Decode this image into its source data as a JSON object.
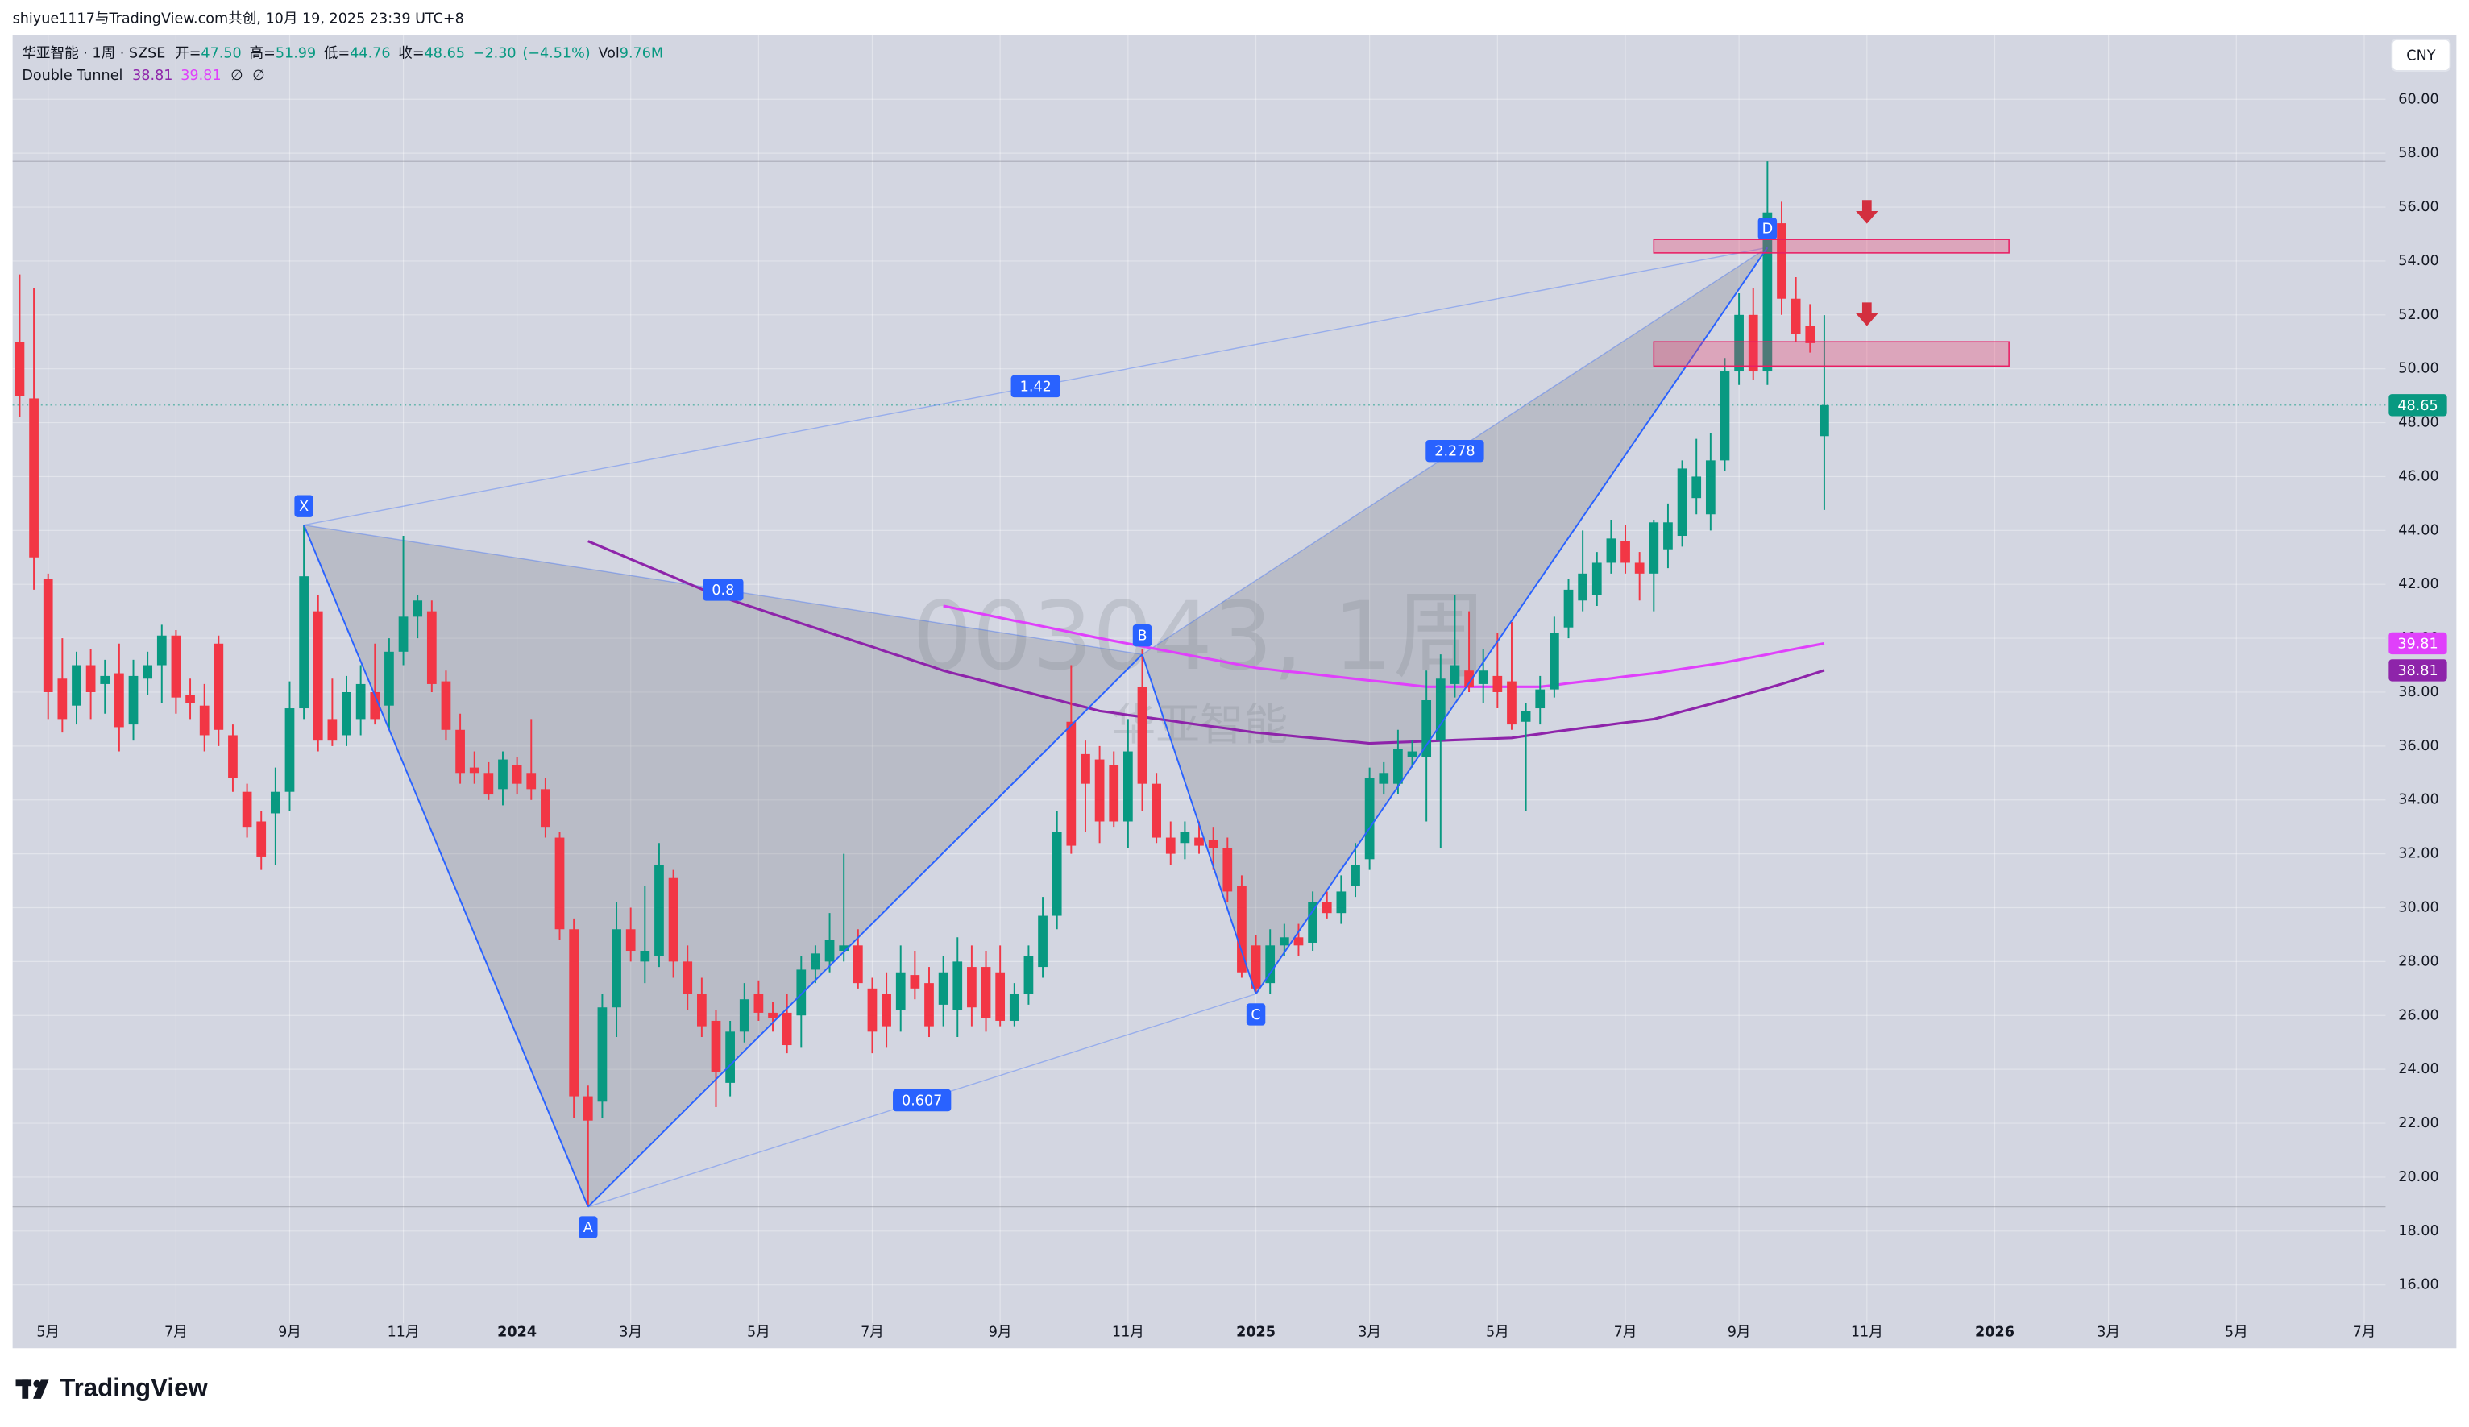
{
  "header": {
    "credit": "shiyue1117与TradingView.com共创, 10月 19, 2025 23:39 UTC+8",
    "currency": "CNY",
    "brand": "TradingView"
  },
  "chart_data": {
    "type": "candlestick",
    "symbol": "华亚智能 · 1周 · SZSE",
    "readout": [
      {
        "name": "开=",
        "value": 47.5,
        "label": "47.50"
      },
      {
        "name": "高=",
        "value": 51.99,
        "label": "51.99"
      },
      {
        "name": "低=",
        "value": 44.76,
        "label": "44.76"
      },
      {
        "name": "收=",
        "value": 48.65,
        "label": "48.65"
      }
    ],
    "change": {
      "value": -2.3,
      "label": "−2.30"
    },
    "change_pct": {
      "value": -4.51,
      "label": "(−4.51%)"
    },
    "volume_title": "Vol",
    "volume": {
      "value": 9760000,
      "label": "9.76M"
    },
    "watermark": "003043, 1周",
    "watermark_name": "华亚智能",
    "up_color": "#089981",
    "down_color": "#f23645",
    "categories": [
      null,
      null,
      "5月",
      null,
      null,
      null,
      null,
      null,
      null,
      null,
      null,
      "7月",
      null,
      null,
      null,
      null,
      null,
      null,
      null,
      "9月",
      null,
      null,
      null,
      null,
      null,
      null,
      null,
      "11月",
      null,
      null,
      null,
      null,
      null,
      null,
      null,
      "2024",
      null,
      null,
      null,
      null,
      null,
      null,
      null,
      "3月",
      null,
      null,
      null,
      null,
      null,
      null,
      null,
      null,
      "5月",
      null,
      null,
      null,
      null,
      null,
      null,
      null,
      "7月",
      null,
      null,
      null,
      null,
      null,
      null,
      null,
      null,
      "9月",
      null,
      null,
      null,
      null,
      null,
      null,
      null,
      null,
      "11月",
      null,
      null,
      null,
      null,
      null,
      null,
      null,
      null,
      "2025",
      null,
      null,
      null,
      null,
      null,
      null,
      null,
      "3月",
      null,
      null,
      null,
      null,
      null,
      null,
      null,
      null,
      "5月",
      null,
      null,
      null,
      null,
      null,
      null,
      null,
      null,
      "7月",
      null,
      null,
      null,
      null,
      null,
      null,
      null,
      "9月",
      null,
      null,
      null,
      null,
      null,
      null,
      null,
      null,
      "11月",
      null,
      null,
      null,
      null,
      null,
      null,
      null,
      null,
      "2026",
      null,
      null,
      null,
      null,
      null,
      null,
      null,
      "3月",
      null,
      null,
      null,
      null,
      null,
      null,
      null,
      null,
      "5月",
      null,
      null,
      null,
      null,
      null,
      null,
      null,
      null,
      "7月",
      null
    ],
    "open": [
      51.0,
      48.9,
      42.2,
      38.5,
      37.5,
      39.0,
      38.3,
      38.7,
      36.8,
      38.5,
      39.0,
      40.1,
      37.9,
      37.5,
      39.8,
      36.4,
      34.3,
      33.2,
      33.5,
      34.3,
      37.4,
      41.0,
      37.0,
      36.4,
      37.0,
      38.0,
      37.5,
      39.5,
      40.8,
      41.0,
      38.4,
      36.6,
      35.2,
      35.0,
      34.4,
      35.3,
      35.0,
      34.4,
      32.6,
      29.2,
      23.0,
      22.8,
      26.3,
      29.2,
      28.0,
      28.2,
      31.1,
      28.0,
      26.8,
      25.8,
      23.5,
      25.4,
      26.8,
      26.1,
      26.1,
      26.0,
      27.7,
      28.0,
      28.4,
      28.6,
      27.0,
      26.8,
      26.2,
      27.5,
      27.2,
      26.4,
      26.2,
      27.8,
      27.8,
      27.6,
      25.8,
      26.8,
      27.8,
      29.7,
      36.9,
      35.7,
      35.5,
      35.3,
      33.2,
      38.2,
      34.6,
      32.6,
      32.4,
      32.6,
      32.5,
      32.2,
      30.8,
      28.6,
      27.2,
      28.6,
      28.9,
      28.7,
      30.2,
      29.8,
      30.8,
      31.8,
      34.6,
      34.6,
      35.6,
      35.6,
      36.2,
      38.3,
      38.8,
      38.3,
      38.6,
      38.4,
      36.9,
      37.4,
      38.1,
      40.4,
      41.4,
      41.6,
      42.8,
      43.6,
      42.8,
      42.4,
      43.3,
      43.8,
      45.2,
      44.6,
      46.6,
      49.9,
      52.0,
      49.9,
      55.4,
      52.6,
      51.6,
      47.5,
      null,
      null,
      null,
      null,
      null,
      null,
      null,
      null,
      null,
      null,
      null,
      null,
      null,
      null,
      null,
      null,
      null,
      null,
      null,
      null,
      null,
      null,
      null,
      null,
      null,
      null,
      null,
      null,
      null,
      null,
      null,
      null,
      null,
      null,
      null,
      null,
      null,
      null,
      null
    ],
    "high": [
      53.5,
      53.0,
      42.4,
      40.0,
      39.5,
      39.6,
      39.2,
      39.8,
      39.2,
      39.5,
      40.5,
      40.3,
      38.5,
      38.3,
      40.1,
      36.8,
      34.6,
      33.6,
      35.2,
      38.4,
      44.2,
      41.6,
      38.5,
      38.6,
      39.0,
      39.8,
      40.0,
      43.8,
      41.6,
      41.4,
      38.8,
      37.2,
      35.8,
      35.4,
      35.8,
      35.6,
      37.0,
      34.8,
      32.8,
      29.6,
      23.4,
      26.8,
      30.2,
      30.0,
      30.8,
      32.4,
      31.4,
      28.6,
      27.4,
      26.2,
      25.8,
      27.2,
      27.3,
      26.5,
      26.8,
      28.2,
      28.6,
      29.8,
      32.0,
      29.2,
      27.4,
      27.6,
      28.6,
      28.4,
      27.8,
      28.2,
      28.9,
      28.6,
      28.4,
      28.6,
      27.2,
      28.6,
      30.4,
      33.6,
      39.0,
      36.2,
      36.0,
      35.8,
      37.0,
      39.6,
      35.0,
      33.2,
      33.2,
      33.2,
      33.0,
      32.6,
      31.2,
      29.0,
      29.2,
      29.4,
      29.4,
      30.6,
      30.6,
      31.2,
      32.4,
      35.2,
      35.4,
      36.6,
      36.2,
      38.8,
      39.4,
      41.6,
      41.0,
      39.6,
      40.2,
      40.6,
      37.6,
      38.6,
      40.8,
      42.2,
      44.0,
      43.2,
      44.4,
      44.2,
      43.2,
      44.4,
      45.0,
      46.6,
      47.4,
      47.6,
      50.4,
      52.8,
      53.0,
      57.7,
      56.2,
      53.4,
      52.4,
      51.99,
      null,
      null,
      null,
      null,
      null,
      null,
      null,
      null,
      null,
      null,
      null,
      null,
      null,
      null,
      null,
      null,
      null,
      null,
      null,
      null,
      null,
      null,
      null,
      null,
      null,
      null,
      null,
      null,
      null,
      null,
      null,
      null,
      null,
      null,
      null,
      null,
      null,
      null,
      null
    ],
    "low": [
      48.2,
      41.8,
      37.0,
      36.5,
      36.8,
      37.0,
      37.2,
      35.8,
      36.2,
      37.9,
      37.6,
      37.2,
      37.0,
      35.8,
      36.0,
      34.3,
      32.6,
      31.4,
      31.6,
      33.6,
      37.0,
      35.8,
      36.0,
      36.0,
      36.4,
      36.8,
      36.6,
      39.0,
      40.0,
      38.0,
      36.2,
      34.6,
      34.6,
      34.0,
      33.8,
      34.2,
      34.0,
      32.6,
      28.8,
      22.2,
      18.9,
      22.2,
      25.2,
      28.0,
      27.2,
      27.8,
      27.4,
      26.2,
      25.2,
      22.6,
      23.0,
      25.0,
      25.8,
      25.4,
      24.6,
      24.8,
      27.2,
      27.6,
      28.0,
      27.0,
      24.6,
      24.8,
      25.4,
      26.6,
      25.2,
      25.6,
      25.2,
      25.6,
      25.4,
      25.6,
      25.6,
      26.4,
      27.4,
      29.2,
      32.0,
      32.8,
      32.4,
      33.0,
      32.2,
      33.6,
      32.4,
      31.6,
      31.8,
      32.0,
      31.4,
      30.2,
      27.4,
      26.8,
      26.8,
      28.2,
      28.2,
      28.4,
      29.6,
      29.4,
      30.4,
      31.4,
      34.2,
      34.2,
      35.2,
      33.2,
      32.2,
      37.8,
      38.0,
      37.6,
      37.4,
      36.6,
      33.6,
      36.8,
      37.8,
      40.0,
      41.0,
      41.2,
      42.4,
      42.4,
      41.4,
      41.0,
      42.6,
      43.4,
      44.6,
      44.0,
      46.2,
      49.4,
      49.6,
      49.4,
      52.0,
      51.0,
      50.6,
      44.76,
      null,
      null,
      null,
      null,
      null,
      null,
      null,
      null,
      null,
      null,
      null,
      null,
      null,
      null,
      null,
      null,
      null,
      null,
      null,
      null,
      null,
      null,
      null,
      null,
      null,
      null,
      null,
      null,
      null,
      null,
      null,
      null,
      null,
      null,
      null,
      null,
      null,
      null,
      null
    ],
    "close": [
      49.0,
      43.0,
      38.0,
      37.0,
      39.0,
      38.0,
      38.6,
      36.7,
      38.6,
      39.0,
      40.1,
      37.8,
      37.6,
      36.4,
      36.6,
      34.8,
      33.0,
      31.9,
      34.3,
      37.4,
      42.3,
      36.2,
      36.2,
      38.0,
      38.3,
      37.0,
      39.5,
      40.8,
      41.4,
      38.3,
      36.6,
      35.0,
      35.0,
      34.2,
      35.5,
      34.6,
      34.4,
      33.0,
      29.2,
      23.0,
      22.1,
      26.3,
      29.2,
      28.4,
      28.4,
      31.6,
      28.0,
      26.8,
      25.6,
      23.9,
      25.4,
      26.6,
      26.1,
      25.9,
      24.9,
      27.7,
      28.3,
      28.8,
      28.6,
      27.2,
      25.4,
      25.6,
      27.6,
      27.0,
      25.6,
      27.6,
      28.0,
      26.3,
      25.9,
      25.8,
      26.8,
      28.2,
      29.7,
      32.8,
      32.3,
      34.6,
      33.2,
      33.2,
      35.8,
      34.6,
      32.6,
      32.0,
      32.8,
      32.3,
      32.2,
      30.6,
      27.6,
      27.0,
      28.6,
      28.9,
      28.6,
      30.2,
      29.8,
      30.6,
      31.6,
      34.8,
      35.0,
      35.9,
      35.8,
      37.7,
      38.5,
      39.0,
      38.2,
      38.8,
      38.0,
      36.8,
      37.3,
      38.1,
      40.2,
      41.8,
      42.4,
      42.8,
      43.7,
      42.8,
      42.4,
      44.3,
      44.3,
      46.3,
      46.0,
      46.6,
      49.9,
      52.0,
      49.9,
      55.8,
      52.6,
      51.3,
      50.95,
      48.65,
      null,
      null,
      null,
      null,
      null,
      null,
      null,
      null,
      null,
      null,
      null,
      null,
      null,
      null,
      null,
      null,
      null,
      null,
      null,
      null,
      null,
      null,
      null,
      null,
      null,
      null,
      null,
      null,
      null,
      null,
      null,
      null,
      null,
      null,
      null,
      null,
      null,
      null,
      null
    ],
    "indicator": {
      "name": "Double Tunnel",
      "na_marks": [
        "∅",
        "∅"
      ],
      "series": [
        {
          "color": "#8e24aa",
          "values": [
            null,
            null,
            null,
            null,
            null,
            null,
            null,
            null,
            null,
            null,
            null,
            null,
            null,
            null,
            null,
            null,
            null,
            null,
            null,
            null,
            null,
            null,
            null,
            null,
            null,
            null,
            null,
            null,
            null,
            null,
            null,
            null,
            null,
            null,
            null,
            null,
            null,
            null,
            null,
            null,
            43.6,
            43.38,
            43.16,
            42.93,
            42.71,
            42.49,
            42.27,
            42.04,
            41.82,
            41.6,
            41.43,
            41.25,
            41.08,
            40.9,
            40.73,
            40.55,
            40.38,
            40.2,
            40.03,
            39.85,
            39.68,
            39.5,
            39.33,
            39.15,
            38.98,
            38.8,
            38.66,
            38.53,
            38.39,
            38.25,
            38.12,
            37.98,
            37.84,
            37.71,
            37.57,
            37.44,
            37.3,
            37.23,
            37.15,
            37.08,
            37.01,
            36.94,
            36.86,
            36.79,
            36.72,
            36.65,
            36.57,
            36.5,
            36.45,
            36.4,
            36.35,
            36.3,
            36.25,
            36.2,
            36.15,
            36.1,
            36.12,
            36.14,
            36.16,
            36.18,
            36.2,
            36.22,
            36.24,
            36.26,
            36.28,
            36.3,
            36.38,
            36.45,
            36.53,
            36.6,
            36.67,
            36.73,
            36.8,
            36.87,
            36.93,
            37.0,
            37.14,
            37.28,
            37.42,
            37.56,
            37.7,
            37.85,
            38.0,
            38.15,
            38.3,
            38.47,
            38.64,
            38.81,
            null,
            null,
            null,
            null,
            null,
            null,
            null,
            null,
            null,
            null,
            null,
            null,
            null,
            null,
            null,
            null,
            null,
            null,
            null,
            null,
            null,
            null,
            null,
            null,
            null,
            null,
            null,
            null,
            null,
            null,
            null,
            null,
            null,
            null,
            null,
            null,
            null,
            null,
            null
          ]
        },
        {
          "color": "#e040fb",
          "values": [
            null,
            null,
            null,
            null,
            null,
            null,
            null,
            null,
            null,
            null,
            null,
            null,
            null,
            null,
            null,
            null,
            null,
            null,
            null,
            null,
            null,
            null,
            null,
            null,
            null,
            null,
            null,
            null,
            null,
            null,
            null,
            null,
            null,
            null,
            null,
            null,
            null,
            null,
            null,
            null,
            null,
            null,
            null,
            null,
            null,
            null,
            null,
            null,
            null,
            null,
            null,
            null,
            null,
            null,
            null,
            null,
            null,
            null,
            null,
            null,
            null,
            null,
            null,
            null,
            null,
            41.2,
            41.09,
            40.98,
            40.87,
            40.76,
            40.65,
            40.55,
            40.44,
            40.33,
            40.22,
            40.11,
            40.0,
            39.9,
            39.8,
            39.7,
            39.6,
            39.5,
            39.4,
            39.3,
            39.2,
            39.1,
            39.0,
            38.9,
            38.84,
            38.78,
            38.73,
            38.67,
            38.61,
            38.55,
            38.49,
            38.43,
            38.38,
            38.32,
            38.26,
            38.2,
            38.2,
            38.2,
            38.2,
            38.2,
            38.2,
            38.2,
            38.2,
            38.2,
            38.26,
            38.33,
            38.39,
            38.45,
            38.51,
            38.58,
            38.64,
            38.7,
            38.78,
            38.86,
            38.94,
            39.02,
            39.1,
            39.2,
            39.3,
            39.4,
            39.51,
            39.61,
            39.71,
            39.81,
            null,
            null,
            null,
            null,
            null,
            null,
            null,
            null,
            null,
            null,
            null,
            null,
            null,
            null,
            null,
            null,
            null,
            null,
            null,
            null,
            null,
            null,
            null,
            null,
            null,
            null,
            null,
            null,
            null,
            null,
            null,
            null,
            null,
            null,
            null,
            null,
            null,
            null,
            null
          ]
        }
      ]
    },
    "pattern": {
      "color": "#2962ff",
      "points": [
        {
          "label": "X",
          "index": 20,
          "price": 44.2
        },
        {
          "label": "A",
          "index": 40,
          "price": 18.9
        },
        {
          "label": "B",
          "index": 79,
          "price": 39.4
        },
        {
          "label": "C",
          "index": 87,
          "price": 26.8
        },
        {
          "label": "D",
          "index": 123,
          "price": 54.5
        }
      ],
      "ratios": [
        1.42,
        0.8,
        0.607,
        2.278
      ]
    },
    "zones": [
      {
        "start": 115,
        "end": 140,
        "top": 54.8,
        "bottom": 54.3
      },
      {
        "start": 115,
        "end": 140,
        "top": 51.0,
        "bottom": 50.1
      }
    ],
    "ylim": [
      13.65,
      62.4
    ],
    "yticks": [
      {
        "value": 16,
        "label": "16.00"
      },
      {
        "value": 18,
        "label": "18.00"
      },
      {
        "value": 20,
        "label": "20.00"
      },
      {
        "value": 22,
        "label": "22.00"
      },
      {
        "value": 24,
        "label": "24.00"
      },
      {
        "value": 26,
        "label": "26.00"
      },
      {
        "value": 28,
        "label": "28.00"
      },
      {
        "value": 30,
        "label": "30.00"
      },
      {
        "value": 32,
        "label": "32.00"
      },
      {
        "value": 34,
        "label": "34.00"
      },
      {
        "value": 36,
        "label": "36.00"
      },
      {
        "value": 38,
        "label": "38.00"
      },
      {
        "value": 40,
        "label": "40.00"
      },
      {
        "value": 42,
        "label": "42.00"
      },
      {
        "value": 44,
        "label": "44.00"
      },
      {
        "value": 46,
        "label": "46.00"
      },
      {
        "value": 48,
        "label": "48.00"
      },
      {
        "value": 50,
        "label": "50.00"
      },
      {
        "value": 52,
        "label": "52.00"
      },
      {
        "value": 54,
        "label": "54.00"
      },
      {
        "value": 56,
        "label": "56.00"
      },
      {
        "value": 58,
        "label": "58.00"
      },
      {
        "value": 60,
        "label": "60.00"
      }
    ],
    "grid": true
  }
}
